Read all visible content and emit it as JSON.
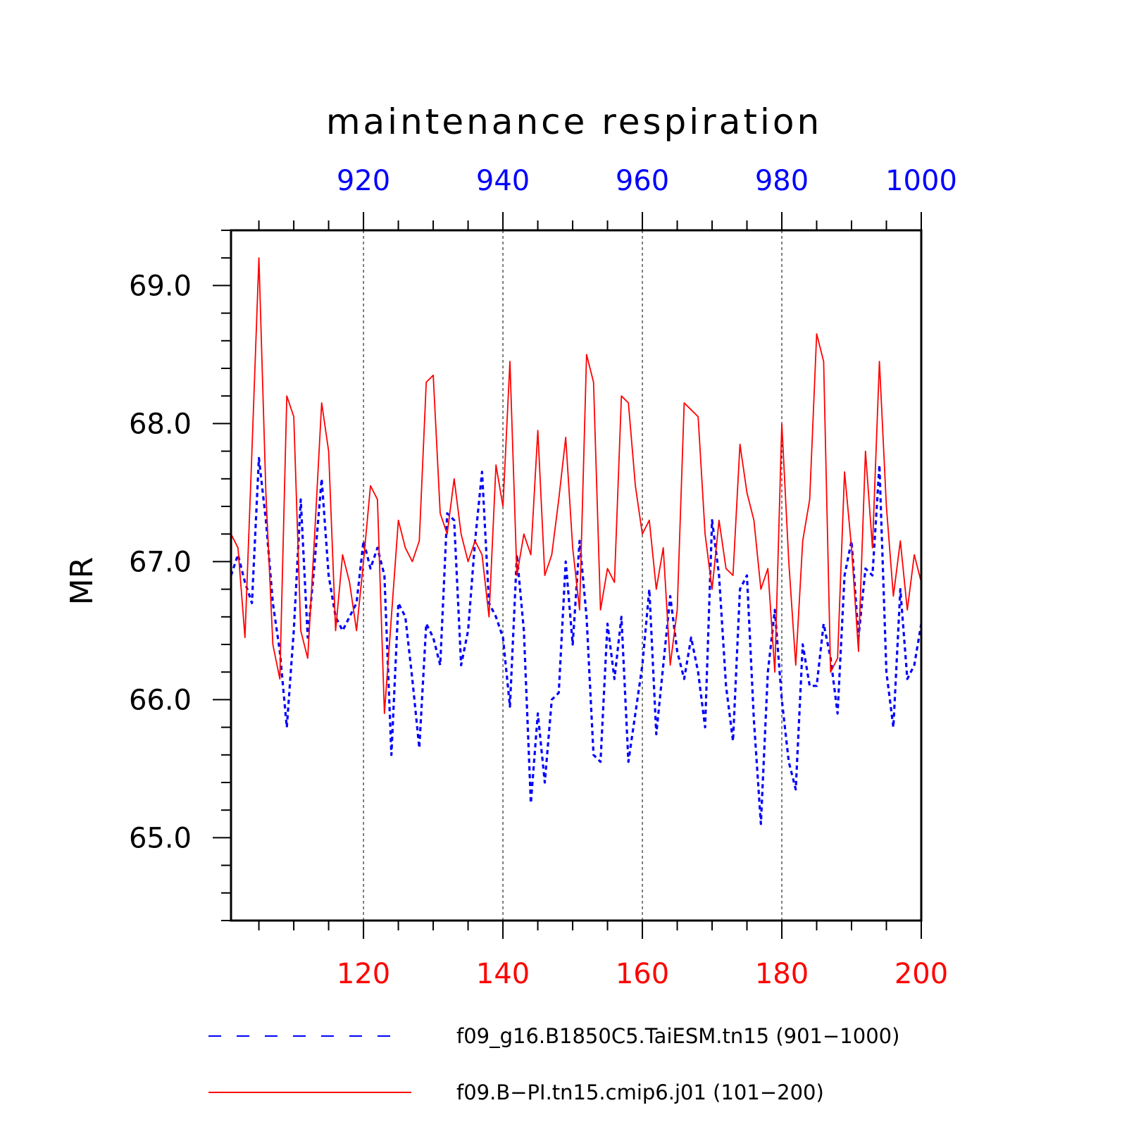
{
  "chart_data": {
    "type": "line",
    "title": "maintenance respiration",
    "ylabel": "MR",
    "ylim": [
      64.4,
      69.4
    ],
    "y_ticks": [
      "69.0",
      "68.0",
      "67.0",
      "66.0",
      "65.0"
    ],
    "y_tick_values": [
      69.0,
      68.0,
      67.0,
      66.0,
      65.0
    ],
    "bottom_axis": {
      "range": [
        101,
        200
      ],
      "ticks": [
        "120",
        "140",
        "160",
        "180",
        "200"
      ],
      "tick_values": [
        120,
        140,
        160,
        180,
        200
      ],
      "color": "#ff0000"
    },
    "top_axis": {
      "range": [
        901,
        1000
      ],
      "ticks": [
        "920",
        "940",
        "960",
        "980",
        "1000"
      ],
      "tick_values": [
        920,
        940,
        960,
        980,
        1000
      ],
      "color": "#0000ff"
    },
    "grid": "vertical dashed at major ticks",
    "legend_position": "bottom",
    "series": [
      {
        "name": "f09_g16.B1850C5.TaiESM.tn15 (901−1000)",
        "axis": "top",
        "color": "#0000ff",
        "style": "dashed",
        "x_start": 901,
        "values": [
          66.9,
          67.05,
          66.85,
          66.7,
          67.75,
          67.3,
          66.7,
          66.35,
          65.8,
          66.5,
          67.45,
          66.45,
          67.0,
          67.6,
          66.9,
          66.6,
          66.5,
          66.6,
          66.7,
          67.15,
          66.95,
          67.1,
          66.9,
          65.6,
          66.7,
          66.6,
          66.15,
          65.65,
          66.55,
          66.45,
          66.25,
          67.35,
          67.3,
          66.25,
          66.5,
          67.15,
          67.65,
          66.7,
          66.6,
          66.45,
          65.95,
          67.05,
          66.5,
          65.25,
          65.9,
          65.4,
          66.0,
          66.05,
          67.0,
          66.4,
          67.15,
          66.6,
          65.6,
          65.55,
          66.55,
          66.15,
          66.6,
          65.55,
          65.9,
          66.25,
          66.8,
          65.75,
          66.25,
          66.75,
          66.35,
          66.15,
          66.45,
          66.2,
          65.8,
          67.3,
          66.9,
          66.1,
          65.7,
          66.8,
          66.9,
          65.85,
          65.1,
          66.2,
          66.65,
          66.0,
          65.55,
          65.35,
          66.4,
          66.1,
          66.1,
          66.55,
          66.3,
          65.9,
          66.9,
          67.15,
          66.45,
          66.95,
          66.9,
          67.7,
          66.2,
          65.8,
          66.8,
          66.15,
          66.25,
          66.55
        ]
      },
      {
        "name": "f09.B−PI.tn15.cmip6.j01 (101−200)",
        "axis": "bottom",
        "color": "#ff0000",
        "style": "solid",
        "x_start": 101,
        "values": [
          67.2,
          67.1,
          66.45,
          67.8,
          69.2,
          67.5,
          66.4,
          66.15,
          68.2,
          68.05,
          66.5,
          66.3,
          67.2,
          68.15,
          67.8,
          66.5,
          67.05,
          66.85,
          66.5,
          67.0,
          67.55,
          67.45,
          65.9,
          66.6,
          67.3,
          67.1,
          67.0,
          67.15,
          68.3,
          68.35,
          67.35,
          67.2,
          67.6,
          67.2,
          67.0,
          67.15,
          67.05,
          66.6,
          67.7,
          67.4,
          68.45,
          66.9,
          67.2,
          67.05,
          67.95,
          66.9,
          67.05,
          67.45,
          67.9,
          67.1,
          66.65,
          68.5,
          68.3,
          66.65,
          66.95,
          66.85,
          68.2,
          68.15,
          67.55,
          67.2,
          67.3,
          66.8,
          67.1,
          66.25,
          66.65,
          68.15,
          68.1,
          68.05,
          67.2,
          66.8,
          67.3,
          66.95,
          66.9,
          67.85,
          67.5,
          67.3,
          66.8,
          66.95,
          66.2,
          68.0,
          67.0,
          66.25,
          67.15,
          67.45,
          68.65,
          68.45,
          66.2,
          66.3,
          67.65,
          67.1,
          66.35,
          67.8,
          67.1,
          68.45,
          67.4,
          66.75,
          67.15,
          66.65,
          67.05,
          66.85
        ]
      }
    ]
  }
}
